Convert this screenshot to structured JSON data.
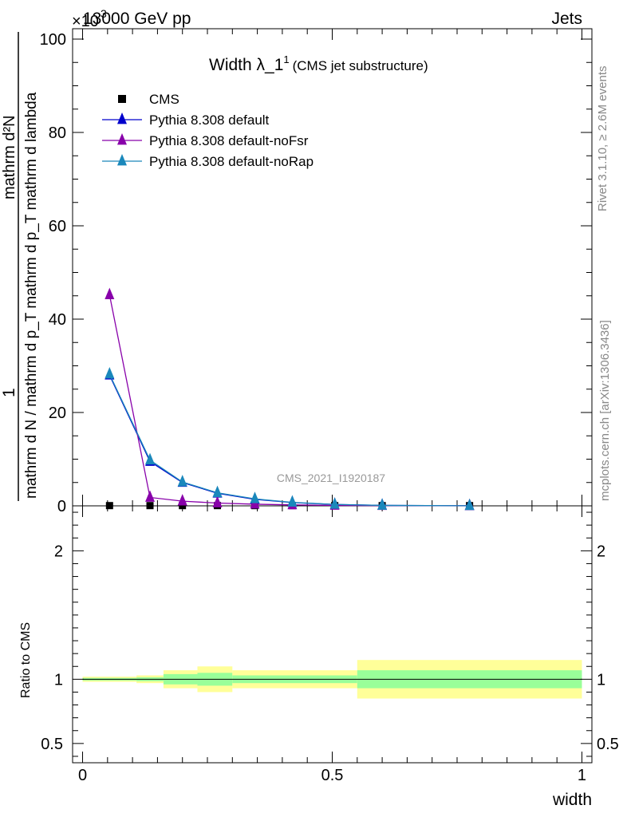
{
  "header": {
    "energy_label": "13000 GeV pp",
    "category_label": "Jets",
    "exponent_label": "×10",
    "exponent_power": "3"
  },
  "side_labels": {
    "rivet": "Rivet 3.1.10, ≥ 2.6M events",
    "mcplots": "mcplots.cern.ch [arXiv:1306.3436]"
  },
  "watermark": "CMS_2021_I1920187",
  "chart_data": [
    {
      "type": "line",
      "title": "Width λ_1",
      "title_superscript": "1",
      "subtitle": "(CMS jet substructure)",
      "ylabel_top": "1",
      "ylabel_bottom": "mathrm d N / mathrm d p_T mathrm d p_T mathrm d lambda",
      "ylabel_side": "mathrm d²N",
      "ylim": [
        0,
        100
      ],
      "xlim": [
        -0.02,
        1.02
      ],
      "y_ticks": [
        "0",
        "20",
        "40",
        "60",
        "80",
        "100"
      ],
      "legend_position": "top-left",
      "x": [
        0.054,
        0.135,
        0.2,
        0.27,
        0.345,
        0.42,
        0.505,
        0.6,
        0.775
      ],
      "series": [
        {
          "name": "CMS",
          "color": "#000000",
          "marker": "square",
          "values": [
            0.05,
            0.05,
            0.05,
            0.05,
            0.05,
            0.05,
            0.05,
            0.05,
            0.05
          ]
        },
        {
          "name": "Pythia 8.308 default",
          "color": "#0000cc",
          "marker": "triangle",
          "values": [
            28.0,
            9.5,
            5.0,
            2.7,
            1.4,
            0.7,
            0.3,
            0.1,
            0.02
          ]
        },
        {
          "name": "Pythia 8.308 default-noFsr",
          "color": "#8800aa",
          "marker": "triangle",
          "values": [
            45.2,
            1.8,
            1.0,
            0.6,
            0.35,
            0.2,
            0.1,
            0.05,
            0.01
          ]
        },
        {
          "name": "Pythia 8.308 default-noRap",
          "color": "#1a88bb",
          "marker": "triangle",
          "values": [
            28.2,
            9.8,
            5.1,
            2.8,
            1.5,
            0.75,
            0.3,
            0.1,
            0.02
          ]
        }
      ]
    },
    {
      "type": "area",
      "ylabel": "Ratio to CMS",
      "xlabel": "width",
      "ylim": [
        0.35,
        2.35
      ],
      "xlim": [
        -0.02,
        1.02
      ],
      "x_ticks": [
        "0",
        "0.5",
        "1"
      ],
      "y_ticks": [
        "0.5",
        "1",
        "2"
      ],
      "reference_line": 1,
      "bands": [
        {
          "x0": 0.0,
          "x1": 0.108,
          "stat": [
            0.99,
            1.01
          ],
          "total": [
            0.98,
            1.02
          ]
        },
        {
          "x0": 0.108,
          "x1": 0.162,
          "stat": [
            0.985,
            1.015
          ],
          "total": [
            0.97,
            1.03
          ]
        },
        {
          "x0": 0.162,
          "x1": 0.23,
          "stat": [
            0.96,
            1.04
          ],
          "total": [
            0.93,
            1.07
          ]
        },
        {
          "x0": 0.23,
          "x1": 0.3,
          "stat": [
            0.95,
            1.05
          ],
          "total": [
            0.9,
            1.1
          ]
        },
        {
          "x0": 0.3,
          "x1": 0.55,
          "stat": [
            0.97,
            1.03
          ],
          "total": [
            0.93,
            1.07
          ]
        },
        {
          "x0": 0.55,
          "x1": 1.0,
          "stat": [
            0.93,
            1.07
          ],
          "total": [
            0.85,
            1.15
          ]
        }
      ],
      "band_colors": {
        "stat": "#99ff99",
        "total": "#ffff99"
      }
    }
  ]
}
